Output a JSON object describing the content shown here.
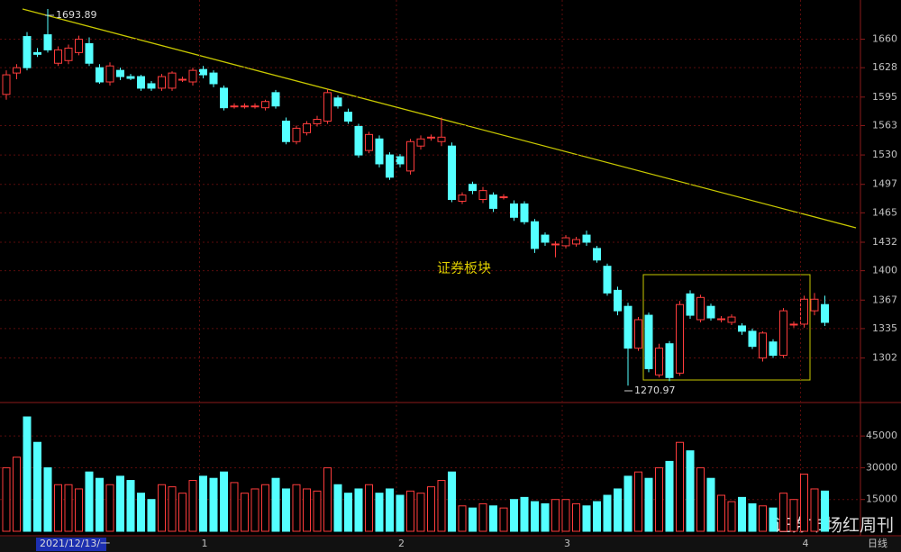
{
  "chart_data": [
    {
      "type": "candlestick",
      "categories": [
        "2021/12/13/一",
        null,
        null,
        null,
        null,
        null,
        null,
        null,
        null,
        null,
        null,
        null,
        null,
        null,
        null,
        null,
        null,
        null,
        null,
        "1",
        null,
        null,
        null,
        null,
        null,
        null,
        null,
        null,
        null,
        null,
        null,
        null,
        null,
        null,
        null,
        null,
        null,
        null,
        "2",
        null,
        null,
        null,
        null,
        null,
        null,
        null,
        null,
        null,
        null,
        null,
        null,
        null,
        null,
        null,
        "3",
        null,
        null,
        null,
        null,
        null,
        null,
        null,
        null,
        null,
        null,
        null,
        null,
        null,
        null,
        null,
        null,
        null,
        null,
        null,
        null,
        null,
        null,
        "4",
        null,
        null
      ],
      "open": [
        1598,
        1622,
        1663,
        1645,
        1665,
        1633,
        1636,
        1645,
        1655,
        1628,
        1612,
        1625,
        1618,
        1618,
        1610,
        1605,
        1605,
        1615,
        1612,
        1626,
        1622,
        1605,
        1585,
        1585,
        1585,
        1583,
        1600,
        1568,
        1545,
        1555,
        1565,
        1568,
        1594,
        1578,
        1562,
        1535,
        1548,
        1530,
        1528,
        1512,
        1540,
        1550,
        1545,
        1540,
        1478,
        1497,
        1480,
        1485,
        1483,
        1475,
        1475,
        1455,
        1440,
        1430,
        1428,
        1430,
        1440,
        1425,
        1405,
        1378,
        1360,
        1313,
        1350,
        1283,
        1318,
        1285,
        1374,
        1345,
        1360,
        1346,
        1342,
        1338,
        1332,
        1302,
        1320,
        1305,
        1340,
        1340,
        1355,
        1362
      ],
      "high": [
        1625,
        1632,
        1668,
        1650,
        1693.89,
        1652,
        1654,
        1664,
        1662,
        1632,
        1634,
        1628,
        1621,
        1620,
        1613,
        1621,
        1624,
        1618,
        1628,
        1630,
        1625,
        1608,
        1588,
        1588,
        1588,
        1592,
        1603,
        1572,
        1563,
        1568,
        1574,
        1604,
        1597,
        1582,
        1565,
        1556,
        1552,
        1533,
        1531,
        1548,
        1552,
        1553,
        1572,
        1544,
        1488,
        1500,
        1494,
        1488,
        1486,
        1479,
        1478,
        1458,
        1443,
        1433,
        1440,
        1438,
        1445,
        1428,
        1408,
        1382,
        1364,
        1348,
        1353,
        1318,
        1321,
        1366,
        1378,
        1373,
        1363,
        1349,
        1351,
        1341,
        1335,
        1332,
        1323,
        1358,
        1343,
        1372,
        1375,
        1372
      ],
      "low": [
        1592,
        1615,
        1625,
        1640,
        1645,
        1630,
        1632,
        1642,
        1630,
        1610,
        1608,
        1614,
        1614,
        1602,
        1602,
        1602,
        1602,
        1612,
        1608,
        1616,
        1606,
        1580,
        1582,
        1582,
        1582,
        1580,
        1582,
        1542,
        1542,
        1552,
        1562,
        1565,
        1582,
        1565,
        1527,
        1532,
        1516,
        1502,
        1516,
        1508,
        1536,
        1546,
        1540,
        1477,
        1475,
        1486,
        1476,
        1466,
        1480,
        1456,
        1452,
        1420,
        1428,
        1415,
        1425,
        1427,
        1428,
        1409,
        1372,
        1350,
        1270.97,
        1310,
        1286,
        1280,
        1276,
        1282,
        1346,
        1342,
        1344,
        1342,
        1339,
        1328,
        1312,
        1298,
        1302,
        1302,
        1336,
        1336,
        1350,
        1338
      ],
      "close": [
        1620,
        1628,
        1628,
        1643,
        1648,
        1648,
        1650,
        1660,
        1633,
        1612,
        1630,
        1618,
        1616,
        1605,
        1605,
        1618,
        1622,
        1615,
        1625,
        1620,
        1610,
        1583,
        1585,
        1585,
        1585,
        1590,
        1585,
        1545,
        1560,
        1565,
        1570,
        1600,
        1585,
        1568,
        1530,
        1553,
        1520,
        1505,
        1520,
        1545,
        1548,
        1550,
        1550,
        1480,
        1485,
        1490,
        1490,
        1470,
        1483,
        1460,
        1455,
        1425,
        1432,
        1430,
        1437,
        1435,
        1432,
        1412,
        1375,
        1355,
        1313,
        1345,
        1290,
        1313,
        1280,
        1362,
        1350,
        1370,
        1347,
        1346,
        1348,
        1332,
        1315,
        1330,
        1305,
        1355,
        1340,
        1368,
        1368,
        1342
      ],
      "up_color": "#ff3c3c",
      "down_color": "#54ffff",
      "ylim": [
        1254,
        1702
      ],
      "yticks": [
        1302,
        1335,
        1367,
        1400,
        1432,
        1465,
        1497,
        1530,
        1563,
        1595,
        1628,
        1660
      ],
      "grid": true,
      "annotations": [
        "证券板块",
        "1693.89",
        "1270.97"
      ]
    },
    {
      "type": "bar",
      "values": [
        30000,
        35000,
        54000,
        42000,
        30000,
        22000,
        22000,
        20000,
        28000,
        25000,
        22000,
        26000,
        24000,
        18000,
        15000,
        22000,
        21000,
        18000,
        24000,
        26000,
        25000,
        28000,
        23000,
        18000,
        20000,
        22000,
        25000,
        20000,
        22000,
        20000,
        19000,
        30000,
        22000,
        18000,
        20000,
        22000,
        18000,
        20000,
        17000,
        19000,
        18000,
        21000,
        24000,
        28000,
        12000,
        11000,
        13000,
        12000,
        11000,
        15000,
        16000,
        14000,
        13000,
        15000,
        15000,
        13000,
        12000,
        14000,
        17000,
        20000,
        26000,
        28000,
        25000,
        30000,
        33000,
        42000,
        38000,
        30000,
        25000,
        17000,
        14000,
        16000,
        13000,
        12000,
        11000,
        18000,
        15000,
        27000,
        20000,
        19000
      ],
      "ylim": [
        0,
        54000
      ],
      "yticks": [
        15000,
        30000,
        45000
      ],
      "grid": true
    }
  ],
  "period": "日线",
  "watermark": "证券市场红周刊"
}
